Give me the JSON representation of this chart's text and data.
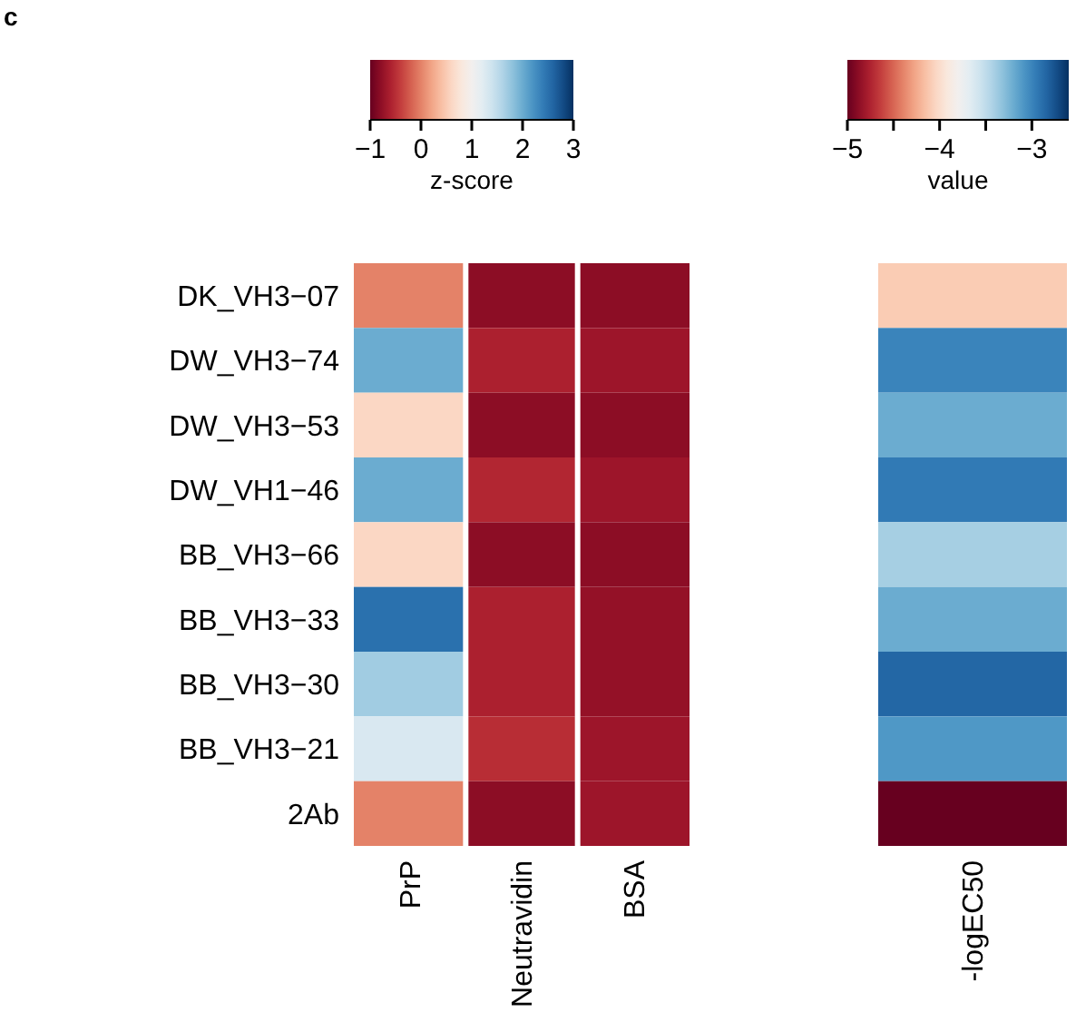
{
  "chart_data": [
    {
      "type": "heatmap",
      "annotations": [
        "c"
      ],
      "categories": [
        "PrP",
        "Neutravidin",
        "BSA"
      ],
      "y_categories": [
        "DK_VH3−07",
        "DW_VH3−74",
        "DW_VH3−53",
        "DW_VH1−46",
        "BB_VH3−66",
        "BB_VH3−33",
        "BB_VH3−30",
        "BB_VH3−21",
        "2Ab"
      ],
      "cells": [
        [
          0.0,
          -0.8,
          -0.8
        ],
        [
          2.0,
          -0.6,
          -0.7
        ],
        [
          0.6,
          -0.8,
          -0.8
        ],
        [
          2.0,
          -0.55,
          -0.7
        ],
        [
          0.6,
          -0.8,
          -0.8
        ],
        [
          2.5,
          -0.6,
          -0.75
        ],
        [
          1.7,
          -0.6,
          -0.75
        ],
        [
          1.3,
          -0.5,
          -0.7
        ],
        [
          0.0,
          -0.8,
          -0.7
        ]
      ],
      "clim": [
        -1,
        3
      ],
      "cticks": [
        -1,
        0,
        1,
        2,
        3
      ],
      "clabel": "z-score"
    },
    {
      "type": "heatmap",
      "categories": [
        "-logEC50"
      ],
      "y_categories": [
        null,
        null,
        null,
        null,
        null,
        null,
        null,
        null,
        null
      ],
      "cells": [
        [
          -4.1
        ],
        [
          -3.0
        ],
        [
          -3.2
        ],
        [
          -2.95
        ],
        [
          -3.4
        ],
        [
          -3.2
        ],
        [
          -2.85
        ],
        [
          -3.1
        ],
        [
          -5.0
        ]
      ],
      "clim": [
        -5,
        -2.6
      ],
      "cticks": [
        -5,
        {
          "value": -4.5,
          "label": null
        },
        -4,
        {
          "value": -3.5,
          "label": null
        },
        -3
      ],
      "clabel": "value"
    }
  ]
}
